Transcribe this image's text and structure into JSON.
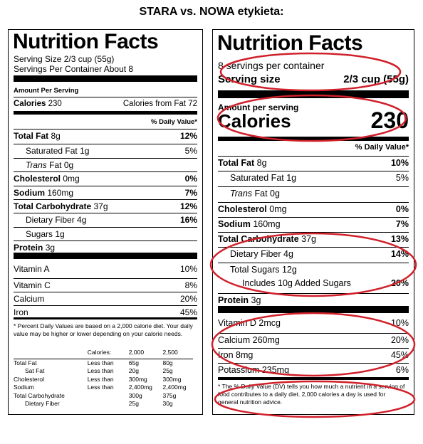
{
  "title": "STARA vs. NOWA etykieta:",
  "old": {
    "heading": "Nutrition Facts",
    "serving_size": "Serving Size 2/3 cup (55g)",
    "servings_per": "Servings Per Container About 8",
    "amount_per": "Amount Per Serving",
    "calories_label": "Calories",
    "calories_value": "230",
    "cal_from_fat": "Calories from Fat 72",
    "dv_header": "% Daily Value*",
    "nutrients": [
      {
        "name": "Total Fat",
        "amount": "8g",
        "dv": "12%"
      },
      {
        "name": "Saturated Fat",
        "amount": "1g",
        "dv": "5%"
      },
      {
        "name": "Trans",
        "amount": "Fat 0g",
        "dv": ""
      },
      {
        "name": "Cholesterol",
        "amount": "0mg",
        "dv": "0%"
      },
      {
        "name": "Sodium",
        "amount": "160mg",
        "dv": "7%"
      },
      {
        "name": "Total Carbohydrate",
        "amount": "37g",
        "dv": "12%"
      },
      {
        "name": "Dietary Fiber",
        "amount": "4g",
        "dv": "16%"
      },
      {
        "name": "Sugars",
        "amount": "1g",
        "dv": ""
      },
      {
        "name": "Protein",
        "amount": "3g",
        "dv": ""
      }
    ],
    "vitamins": [
      {
        "name": "Vitamin A",
        "dv": "10%"
      },
      {
        "name": "Vitamin C",
        "dv": "8%"
      },
      {
        "name": "Calcium",
        "dv": "20%"
      },
      {
        "name": "Iron",
        "dv": "45%"
      }
    ],
    "footnote": "* Percent Daily Values are based on a 2,000 calorie diet. Your daily value may be higher or lower depending on your calorie needs.",
    "table": {
      "header": [
        "",
        "Calories:",
        "2,000",
        "2,500"
      ],
      "rows": [
        [
          "Total Fat",
          "Less than",
          "65g",
          "80g"
        ],
        [
          "Sat Fat",
          "Less than",
          "20g",
          "25g"
        ],
        [
          "Cholesterol",
          "Less than",
          "300mg",
          "300mg"
        ],
        [
          "Sodium",
          "Less than",
          "2,400mg",
          "2,400mg"
        ],
        [
          "Total Carbohydrate",
          "",
          "300g",
          "375g"
        ],
        [
          "Dietary Fiber",
          "",
          "25g",
          "30g"
        ]
      ]
    }
  },
  "new": {
    "heading": "Nutrition Facts",
    "servings_per": "8 servings per container",
    "serving_size_label": "Serving size",
    "serving_size_value": "2/3 cup (55g)",
    "amount_per": "Amount per serving",
    "calories_label": "Calories",
    "calories_value": "230",
    "dv_header": "% Daily Value*",
    "nutrients": [
      {
        "name": "Total Fat",
        "amount": "8g",
        "dv": "10%"
      },
      {
        "name": "Saturated Fat",
        "amount": "1g",
        "dv": "5%"
      },
      {
        "name": "Trans",
        "amount": "Fat 0g",
        "dv": ""
      },
      {
        "name": "Cholesterol",
        "amount": "0mg",
        "dv": "0%"
      },
      {
        "name": "Sodium",
        "amount": "160mg",
        "dv": "7%"
      },
      {
        "name": "Total Carbohydrate",
        "amount": "37g",
        "dv": "13%"
      },
      {
        "name": "Dietary Fiber",
        "amount": "4g",
        "dv": "14%"
      },
      {
        "name": "Total Sugars",
        "amount": "12g",
        "dv": ""
      },
      {
        "name": "Includes 10g Added Sugars",
        "amount": "",
        "dv": "20%"
      },
      {
        "name": "Protein",
        "amount": "3g",
        "dv": ""
      }
    ],
    "vitamins": [
      {
        "name": "Vitamin D 2mcg",
        "dv": "10%"
      },
      {
        "name": "Calcium 260mg",
        "dv": "20%"
      },
      {
        "name": "Iron 8mg",
        "dv": "45%"
      },
      {
        "name": "Potassium 235mg",
        "dv": "6%"
      }
    ],
    "footnote": "* The % Daily Value (DV) tells you how much a nutrient in a serving of food contributes to a daily diet. 2,000 calories a day is used for general nutrition advice."
  },
  "colors": {
    "highlight": "#d0202a"
  }
}
